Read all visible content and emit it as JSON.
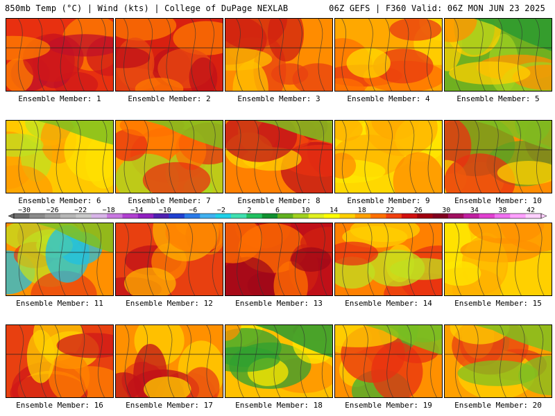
{
  "header": {
    "left": "850mb Temp (°C) | Wind (kts) | College of DuPage NEXLAB",
    "right": "06Z GEFS | F360 Valid: 06Z MON JUN 23 2025"
  },
  "colorbar": {
    "labels": [
      "-30",
      "-26",
      "-22",
      "-18",
      "-14",
      "-10",
      "-6",
      "-2",
      "2",
      "6",
      "10",
      "14",
      "18",
      "22",
      "26",
      "30",
      "34",
      "38",
      "42"
    ],
    "colors": [
      "#6e6e6e",
      "#8a8a8a",
      "#a0a0a0",
      "#b6b6b6",
      "#c8c8c8",
      "#d8b4e8",
      "#c878e0",
      "#b040d0",
      "#9020c0",
      "#5020b0",
      "#2040d0",
      "#2a7ae8",
      "#40b0f0",
      "#20d0e8",
      "#40e0b0",
      "#20c060",
      "#109030",
      "#60b020",
      "#a0d020",
      "#e0f020",
      "#ffff00",
      "#ffd000",
      "#ffa000",
      "#ff7000",
      "#f04010",
      "#d01010",
      "#a00010",
      "#800020",
      "#a01060",
      "#c020a0",
      "#e040d0",
      "#f070f0",
      "#ffa0ff",
      "#ffd0ff"
    ]
  },
  "members": [
    {
      "label": "Ensemble Member: 1",
      "palette": [
        "#e83010",
        "#d01818",
        "#c01028",
        "#ff8000"
      ],
      "green": 0.25
    },
    {
      "label": "Ensemble Member: 2",
      "palette": [
        "#d82010",
        "#e84a10",
        "#ff7a00",
        "#c01018"
      ],
      "green": 0.05
    },
    {
      "label": "Ensemble Member: 3",
      "palette": [
        "#ff8c00",
        "#e84010",
        "#ffc000",
        "#d02010"
      ],
      "green": 0.15
    },
    {
      "label": "Ensemble Member: 4",
      "palette": [
        "#ffa800",
        "#ff7000",
        "#e83a10",
        "#ffd800"
      ],
      "green": 0.15
    },
    {
      "label": "Ensemble Member: 5",
      "palette": [
        "#70b020",
        "#a0d020",
        "#ffd000",
        "#ff9000"
      ],
      "green": 0.7
    },
    {
      "label": "Ensemble Member: 6",
      "palette": [
        "#ffc800",
        "#ff9c00",
        "#c0e020",
        "#ffe000"
      ],
      "green": 0.4
    },
    {
      "label": "Ensemble Member: 7",
      "palette": [
        "#ffa000",
        "#ff7000",
        "#a8d820",
        "#e83010"
      ],
      "green": 0.55
    },
    {
      "label": "Ensemble Member: 8",
      "palette": [
        "#ff8000",
        "#e83010",
        "#ffd000",
        "#c01018"
      ],
      "green": 0.35
    },
    {
      "label": "Ensemble Member: 9",
      "palette": [
        "#ffd800",
        "#ffe800",
        "#ffb000",
        "#ff8c00"
      ],
      "green": 0.1
    },
    {
      "label": "Ensemble Member: 10",
      "palette": [
        "#ff8c00",
        "#e83010",
        "#ffd000",
        "#60a020"
      ],
      "green": 0.6
    },
    {
      "label": "Ensemble Member: 11",
      "palette": [
        "#ff9000",
        "#e84010",
        "#c0e020",
        "#20c0e0"
      ],
      "green": 0.6
    },
    {
      "label": "Ensemble Member: 12",
      "palette": [
        "#e84010",
        "#ff8000",
        "#c01018",
        "#ffb000"
      ],
      "green": 0.05
    },
    {
      "label": "Ensemble Member: 13",
      "palette": [
        "#c01018",
        "#d02010",
        "#a00818",
        "#ff7000"
      ],
      "green": 0.0
    },
    {
      "label": "Ensemble Member: 14",
      "palette": [
        "#ff8000",
        "#e83010",
        "#ffd000",
        "#c0e020"
      ],
      "green": 0.2
    },
    {
      "label": "Ensemble Member: 15",
      "palette": [
        "#ffd000",
        "#ffb000",
        "#ffe800",
        "#ff9000"
      ],
      "green": 0.15
    },
    {
      "label": "Ensemble Member: 16",
      "palette": [
        "#e84010",
        "#ff8000",
        "#d01818",
        "#ffd000"
      ],
      "green": 0.1
    },
    {
      "label": "Ensemble Member: 17",
      "palette": [
        "#ff9000",
        "#e84010",
        "#ffd000",
        "#c01018"
      ],
      "green": 0.05
    },
    {
      "label": "Ensemble Member: 18",
      "palette": [
        "#ffc000",
        "#ff9000",
        "#30a030",
        "#ffe800"
      ],
      "green": 0.7
    },
    {
      "label": "Ensemble Member: 19",
      "palette": [
        "#ff9000",
        "#ffd000",
        "#40b030",
        "#e83010"
      ],
      "green": 0.6
    },
    {
      "label": "Ensemble Member: 20",
      "palette": [
        "#ffa000",
        "#e84010",
        "#80c020",
        "#ffd000"
      ],
      "green": 0.5
    }
  ]
}
